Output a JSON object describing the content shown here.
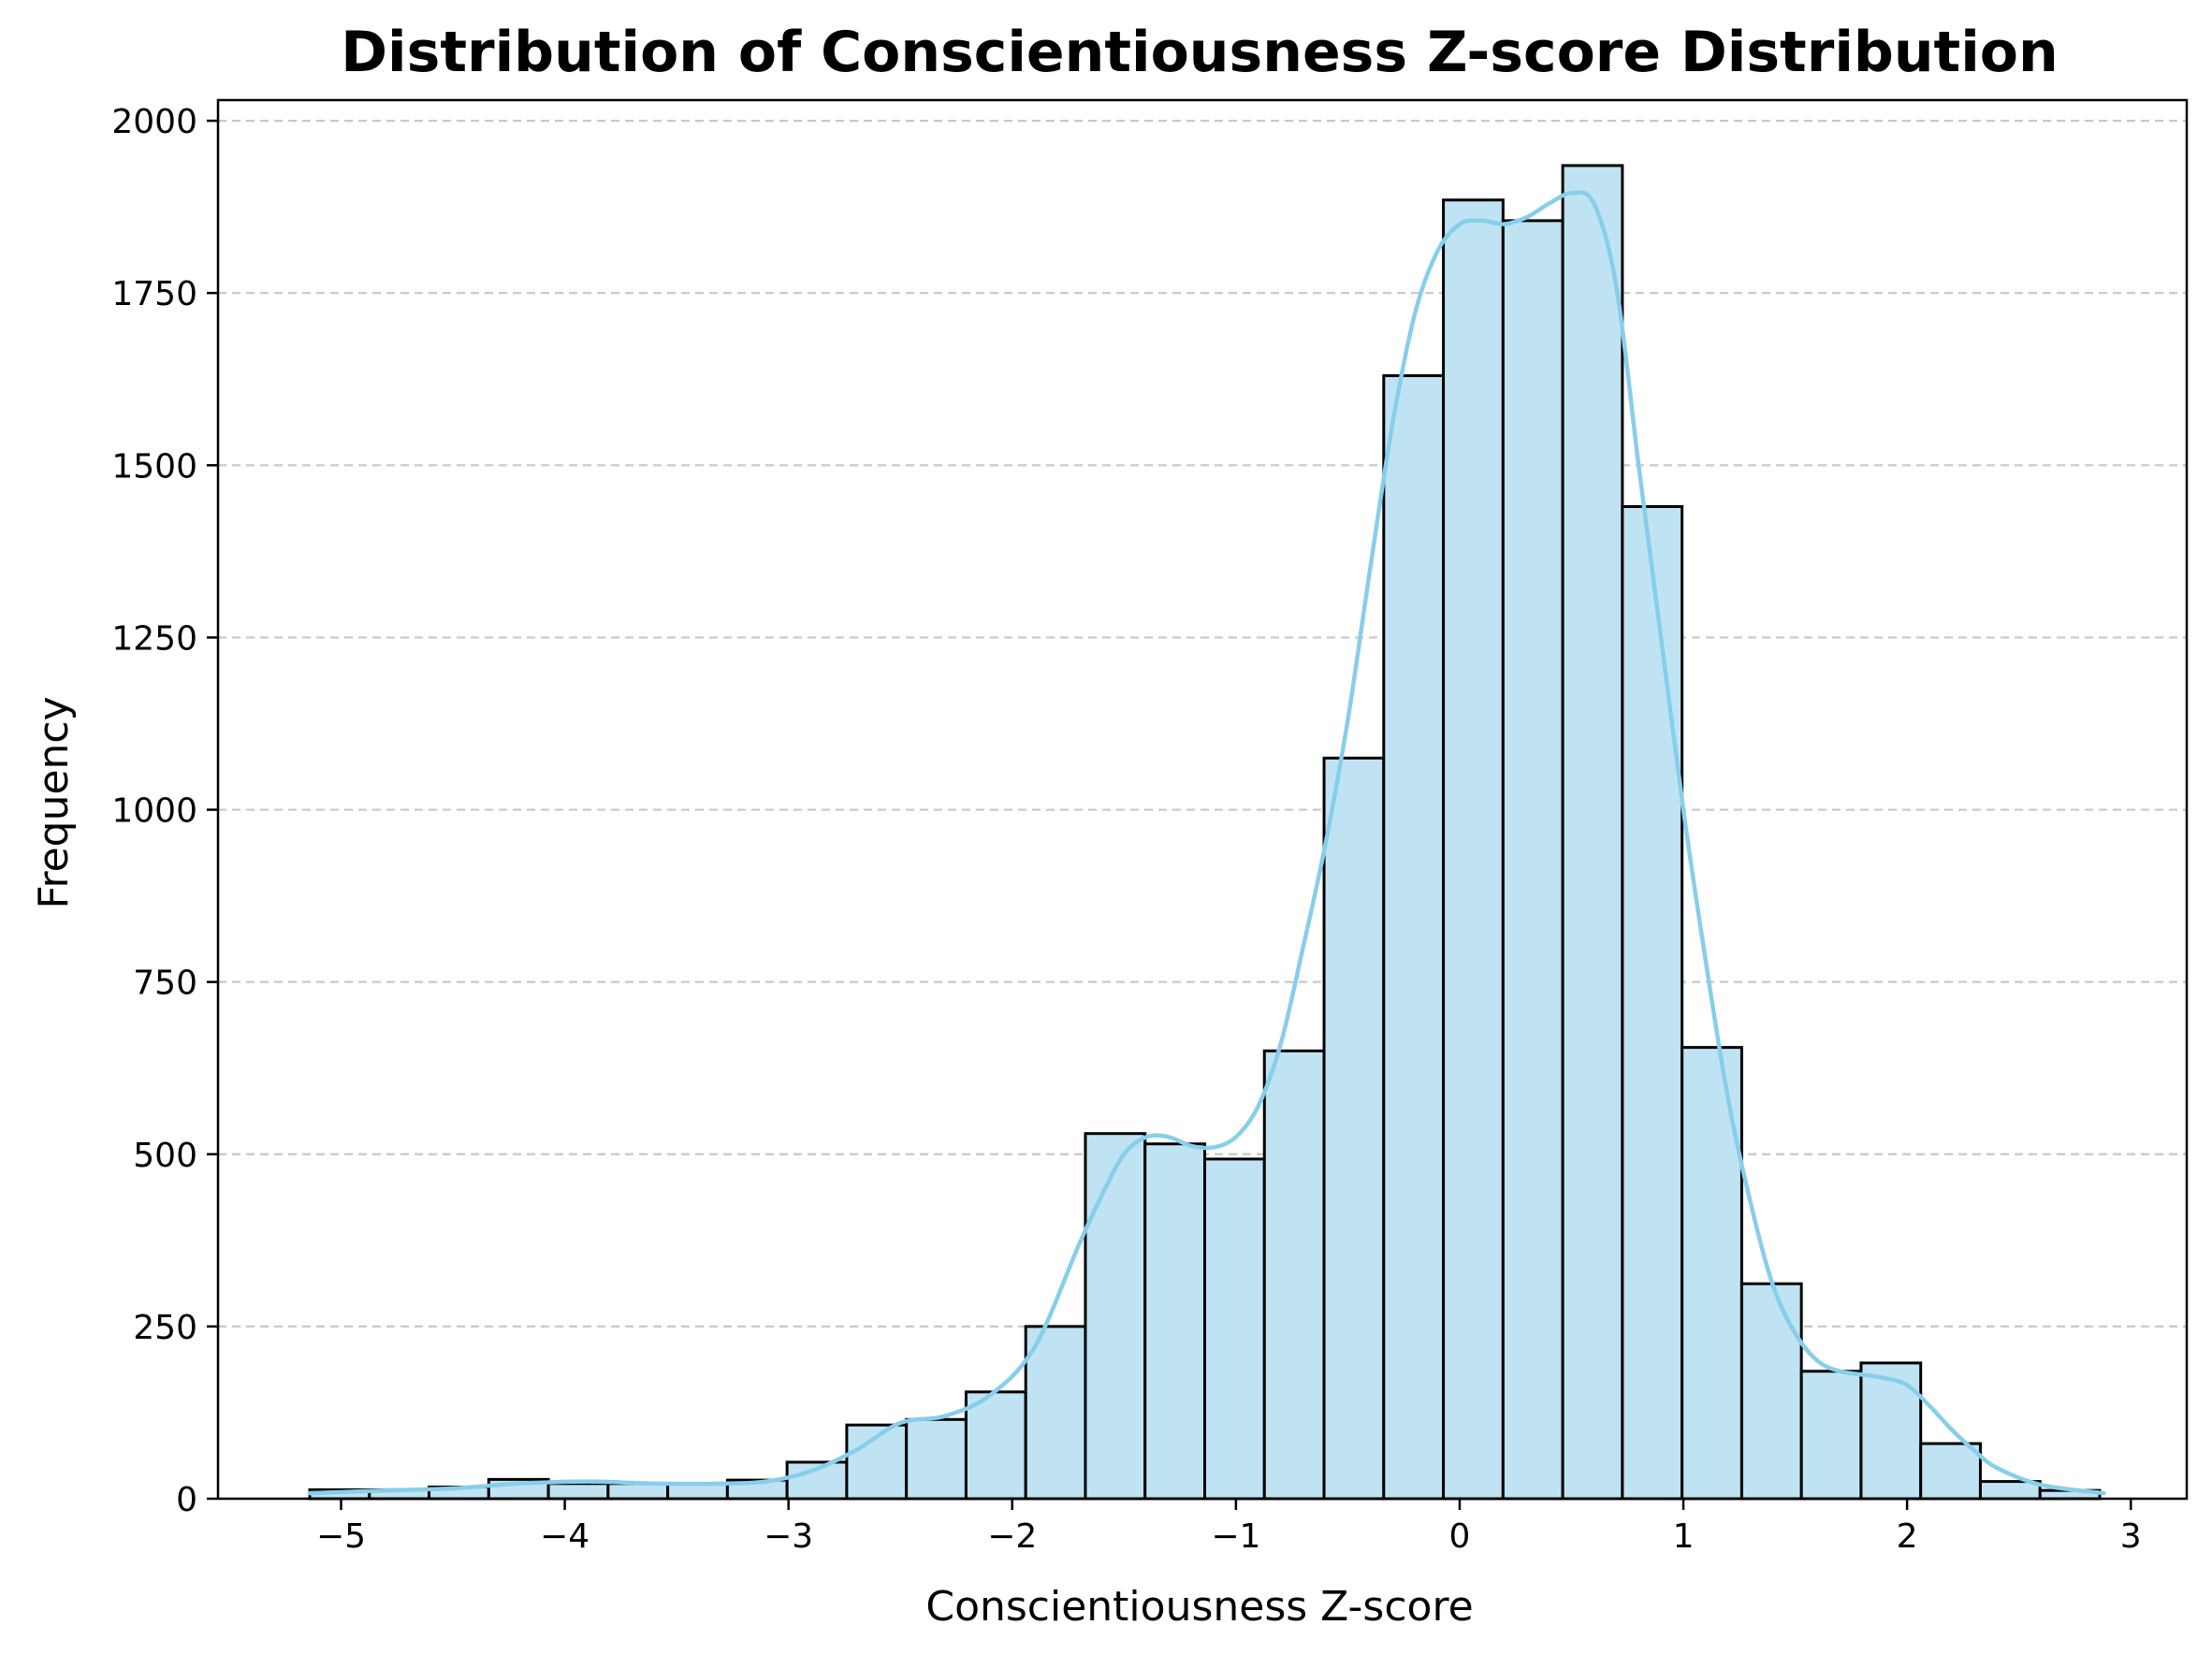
{
  "chart_data": {
    "type": "bar",
    "title": "Distribution of Conscientiousness Z-score Distribution",
    "xlabel": "Conscientiousness Z-score",
    "ylabel": "Frequency",
    "xlim": [
      -5.55,
      3.25
    ],
    "ylim": [
      0,
      2030
    ],
    "grid": "y-dashed",
    "xticks": [
      -5,
      -4,
      -3,
      -2,
      -1,
      0,
      1,
      2,
      3
    ],
    "xtick_labels": [
      "−5",
      "−4",
      "−3",
      "−2",
      "−1",
      "0",
      "1",
      "2",
      "3"
    ],
    "yticks": [
      0,
      250,
      500,
      750,
      1000,
      1250,
      1500,
      1750,
      2000
    ],
    "ytick_labels": [
      "0",
      "250",
      "500",
      "750",
      "1000",
      "1250",
      "1500",
      "1750",
      "2000"
    ],
    "bin_start": -5.14,
    "bin_width": 0.2667,
    "values": [
      13,
      13,
      17,
      28,
      22,
      22,
      21,
      27,
      53,
      107,
      115,
      155,
      250,
      530,
      515,
      493,
      650,
      1075,
      1630,
      1885,
      1855,
      1935,
      1440,
      655,
      312,
      185,
      197,
      80,
      25,
      12
    ],
    "kde": {
      "x": [
        -5.14,
        -4.8,
        -4.5,
        -4.2,
        -3.9,
        -3.6,
        -3.3,
        -3.1,
        -2.9,
        -2.7,
        -2.5,
        -2.3,
        -2.1,
        -1.9,
        -1.7,
        -1.6,
        -1.5,
        -1.4,
        -1.3,
        -1.2,
        -1.1,
        -1.0,
        -0.9,
        -0.8,
        -0.7,
        -0.6,
        -0.5,
        -0.4,
        -0.3,
        -0.2,
        -0.1,
        0.0,
        0.1,
        0.2,
        0.3,
        0.4,
        0.5,
        0.6,
        0.7,
        0.8,
        0.9,
        1.0,
        1.1,
        1.2,
        1.3,
        1.4,
        1.5,
        1.6,
        1.7,
        1.8,
        1.9,
        2.0,
        2.1,
        2.2,
        2.3,
        2.4,
        2.6,
        2.88
      ],
      "y": [
        8,
        12,
        15,
        22,
        25,
        22,
        22,
        25,
        40,
        70,
        110,
        120,
        150,
        220,
        370,
        440,
        500,
        525,
        525,
        512,
        510,
        525,
        570,
        660,
        800,
        950,
        1130,
        1350,
        1560,
        1720,
        1810,
        1850,
        1855,
        1850,
        1860,
        1880,
        1895,
        1880,
        1760,
        1500,
        1250,
        1000,
        780,
        580,
        430,
        310,
        240,
        200,
        185,
        180,
        175,
        165,
        135,
        100,
        70,
        45,
        20,
        8
      ]
    },
    "colors": {
      "bar_fill": "#c0e3f3",
      "bar_edge": "#000000",
      "kde_line": "#87ceeb",
      "grid": "#c8c8c8"
    }
  }
}
